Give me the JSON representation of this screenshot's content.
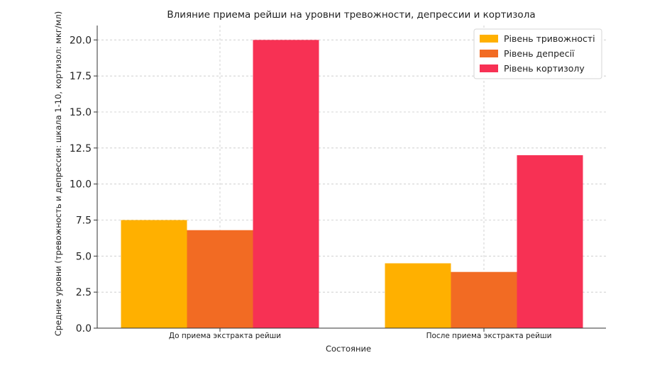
{
  "chart_data": {
    "type": "bar",
    "title": "Влияние приема рейши на уровни тревожности, депрессии и кортизола",
    "xlabel": "Состояние",
    "ylabel": "Средние уровни (тревожность и депрессия: шкала 1-10, кортизол: мкг/мл)",
    "categories": [
      "До приема экстракта рейши",
      "После приема экстракта рейши"
    ],
    "series": [
      {
        "name": "Рівень тривожності",
        "values": [
          7.5,
          4.5
        ],
        "color": "#FFB000"
      },
      {
        "name": "Рівень депресії",
        "values": [
          6.8,
          3.9
        ],
        "color": "#F26B23"
      },
      {
        "name": "Рівень кортизолу",
        "values": [
          20,
          12
        ],
        "color": "#F73154"
      }
    ],
    "ylim": [
      0,
      21
    ],
    "yticks": [
      "0.0",
      "2.5",
      "5.0",
      "7.5",
      "10.0",
      "12.5",
      "15.0",
      "17.5",
      "20.0"
    ],
    "grid": true,
    "legend_position": "top-right"
  }
}
